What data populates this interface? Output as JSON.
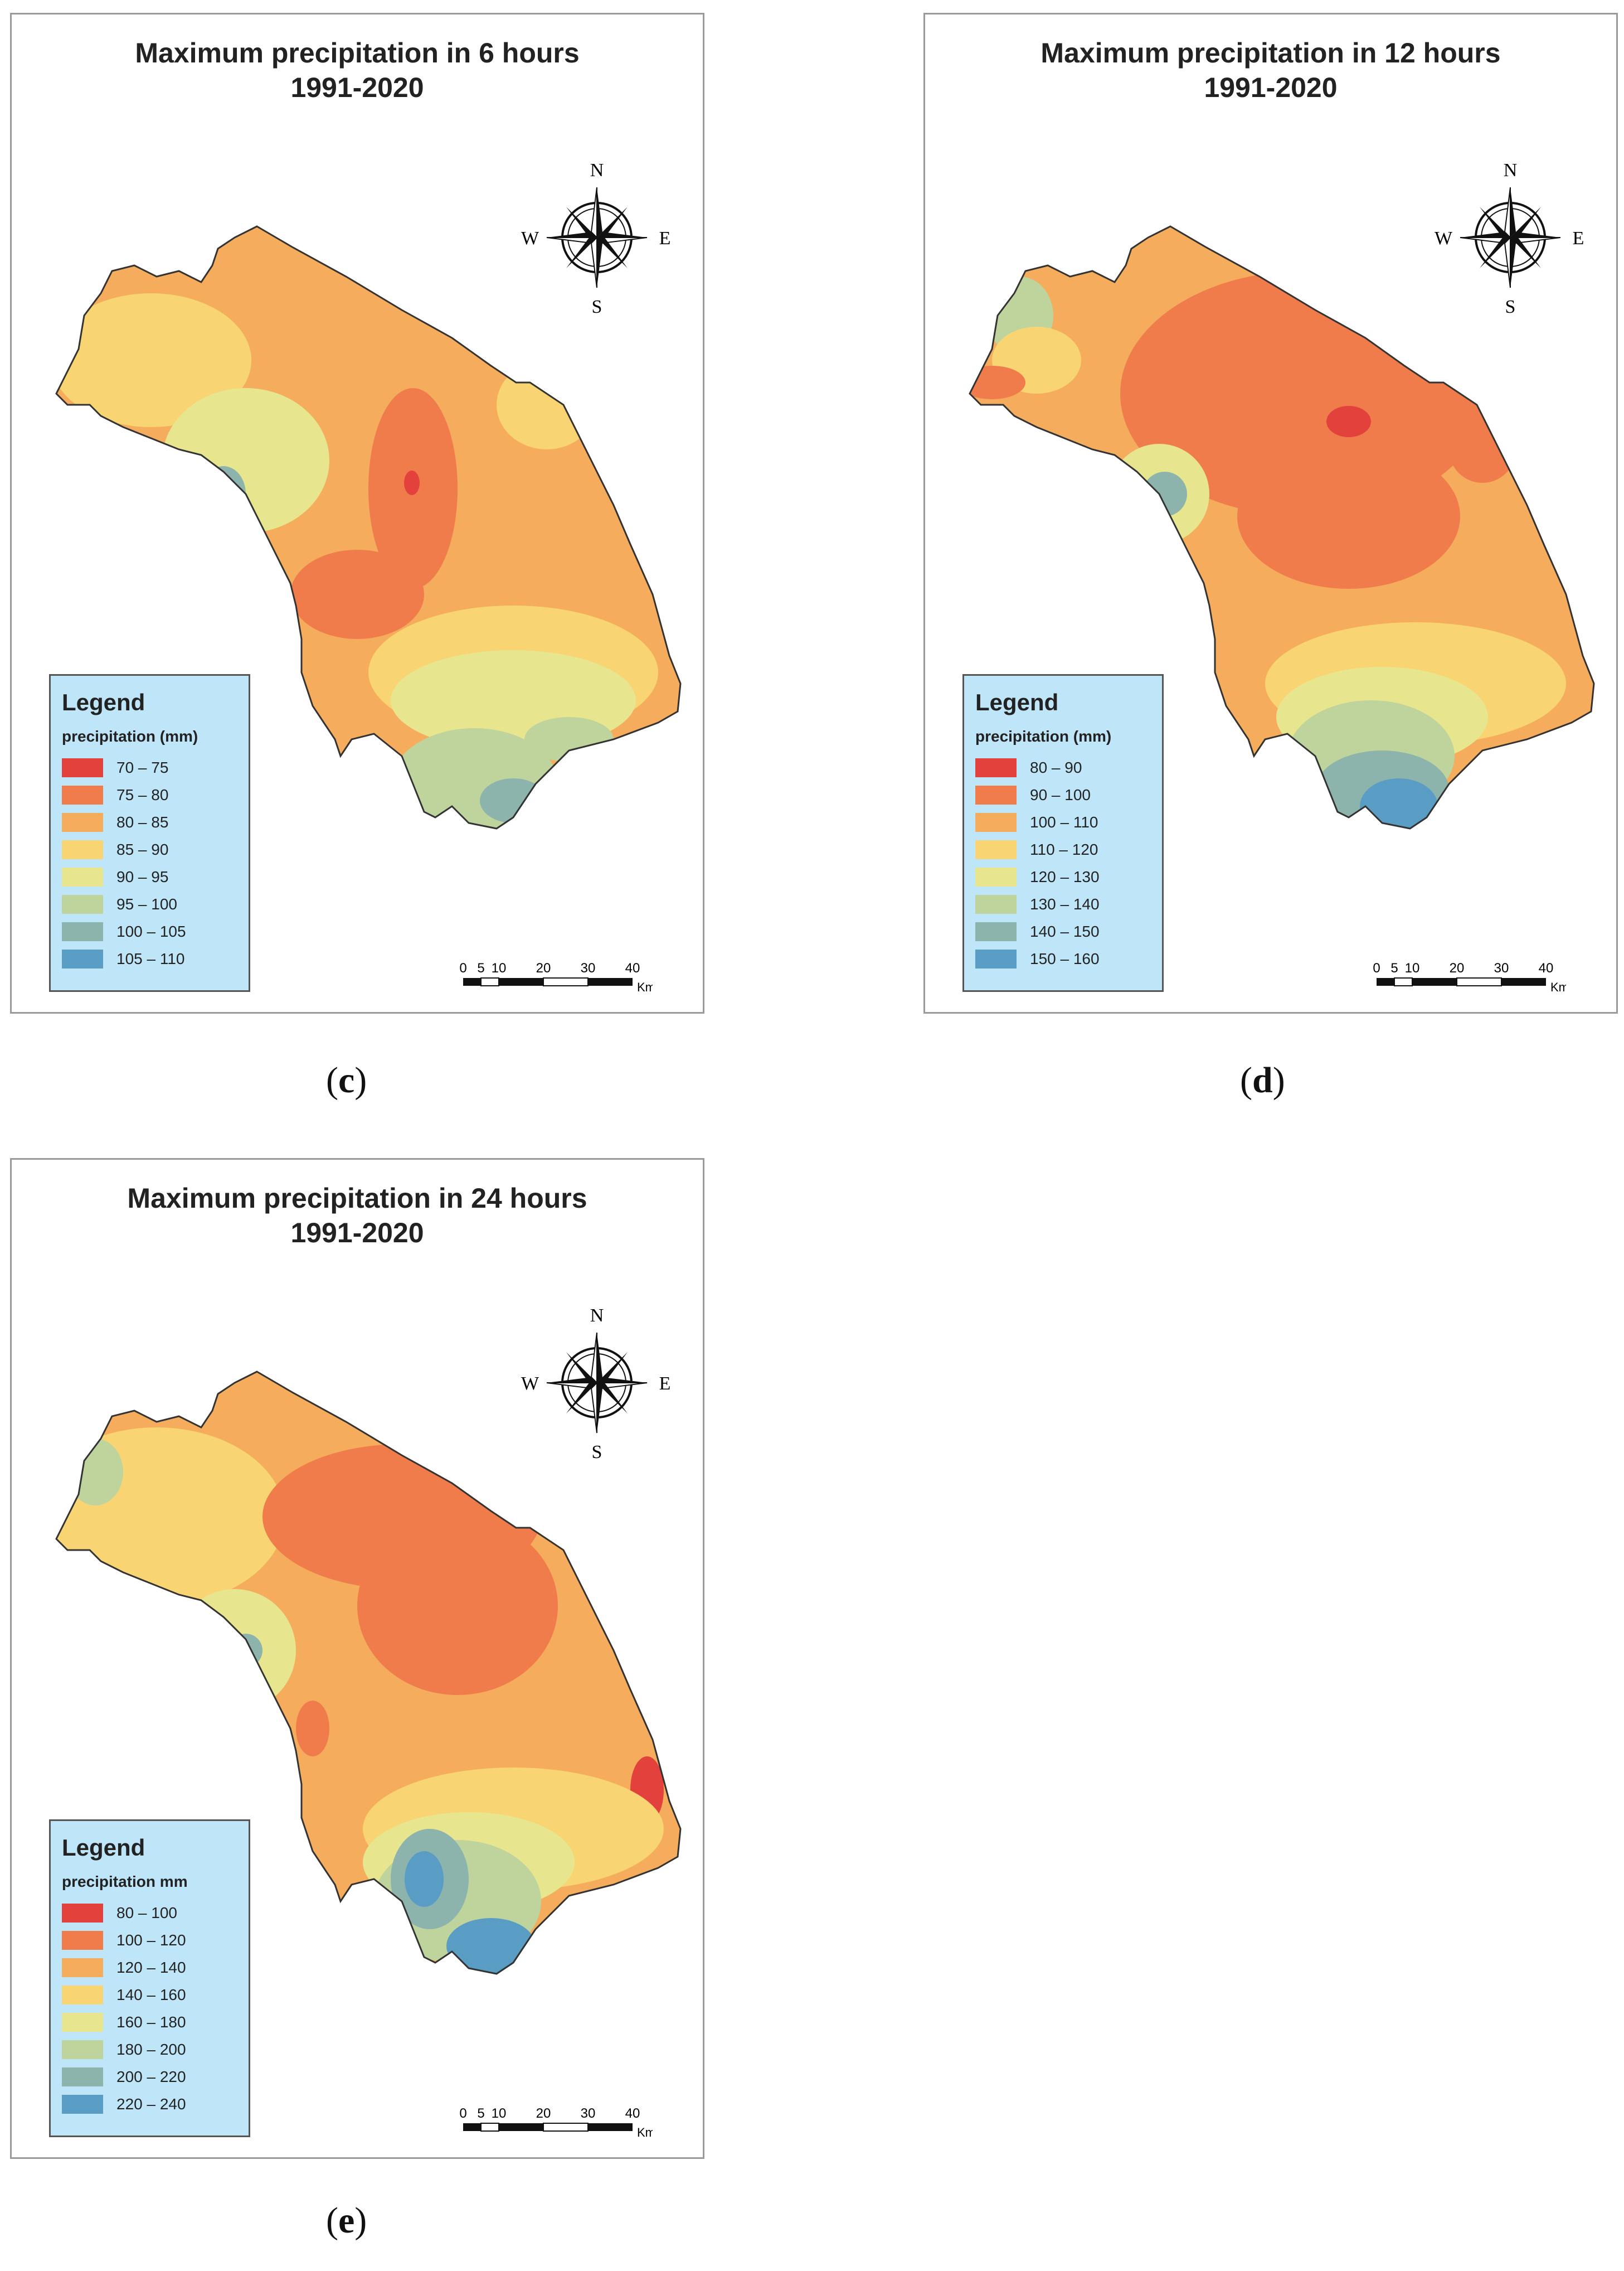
{
  "panels": {
    "c": {
      "title_line1": "Maximum precipitation in 6 hours",
      "title_line2": "1991-2020",
      "legend_heading": "Legend",
      "legend_subtitle": "precipitation (mm)",
      "legend": [
        {
          "label": "70 – 75",
          "color": "#e3413b"
        },
        {
          "label": "75 – 80",
          "color": "#ef7c4a"
        },
        {
          "label": "80 – 85",
          "color": "#f5ac5c"
        },
        {
          "label": "85 – 90",
          "color": "#f8d472"
        },
        {
          "label": "90 – 95",
          "color": "#e7e58e"
        },
        {
          "label": "95 – 100",
          "color": "#bfd39c"
        },
        {
          "label": "100 – 105",
          "color": "#8cb4ac"
        },
        {
          "label": "105 – 110",
          "color": "#5a9dc4"
        }
      ],
      "caption": "c"
    },
    "d": {
      "title_line1": "Maximum precipitation in 12 hours",
      "title_line2": "1991-2020",
      "legend_heading": "Legend",
      "legend_subtitle": "precipitation (mm)",
      "legend": [
        {
          "label": "80 – 90",
          "color": "#e3413b"
        },
        {
          "label": "90 – 100",
          "color": "#ef7c4a"
        },
        {
          "label": "100 – 110",
          "color": "#f5ac5c"
        },
        {
          "label": "110 – 120",
          "color": "#f8d472"
        },
        {
          "label": "120 – 130",
          "color": "#e7e58e"
        },
        {
          "label": "130 – 140",
          "color": "#bfd39c"
        },
        {
          "label": "140 – 150",
          "color": "#8cb4ac"
        },
        {
          "label": "150 – 160",
          "color": "#5a9dc4"
        }
      ],
      "caption": "d"
    },
    "e": {
      "title_line1": "Maximum precipitation in 24 hours",
      "title_line2": "1991-2020",
      "legend_heading": "Legend",
      "legend_subtitle": "precipitation mm",
      "legend": [
        {
          "label": "80 – 100",
          "color": "#e3413b"
        },
        {
          "label": "100 – 120",
          "color": "#ef7c4a"
        },
        {
          "label": "120 – 140",
          "color": "#f5ac5c"
        },
        {
          "label": "140 – 160",
          "color": "#f8d472"
        },
        {
          "label": "160 – 180",
          "color": "#e7e58e"
        },
        {
          "label": "180 – 200",
          "color": "#bfd39c"
        },
        {
          "label": "200 – 220",
          "color": "#8cb4ac"
        },
        {
          "label": "220 – 240",
          "color": "#5a9dc4"
        }
      ],
      "caption": "e"
    }
  },
  "compass": {
    "n": "N",
    "s": "S",
    "e": "E",
    "w": "W"
  },
  "scalebar": {
    "ticks": [
      "0",
      "5",
      "10",
      "20",
      "30",
      "40"
    ],
    "unit": "Km"
  }
}
